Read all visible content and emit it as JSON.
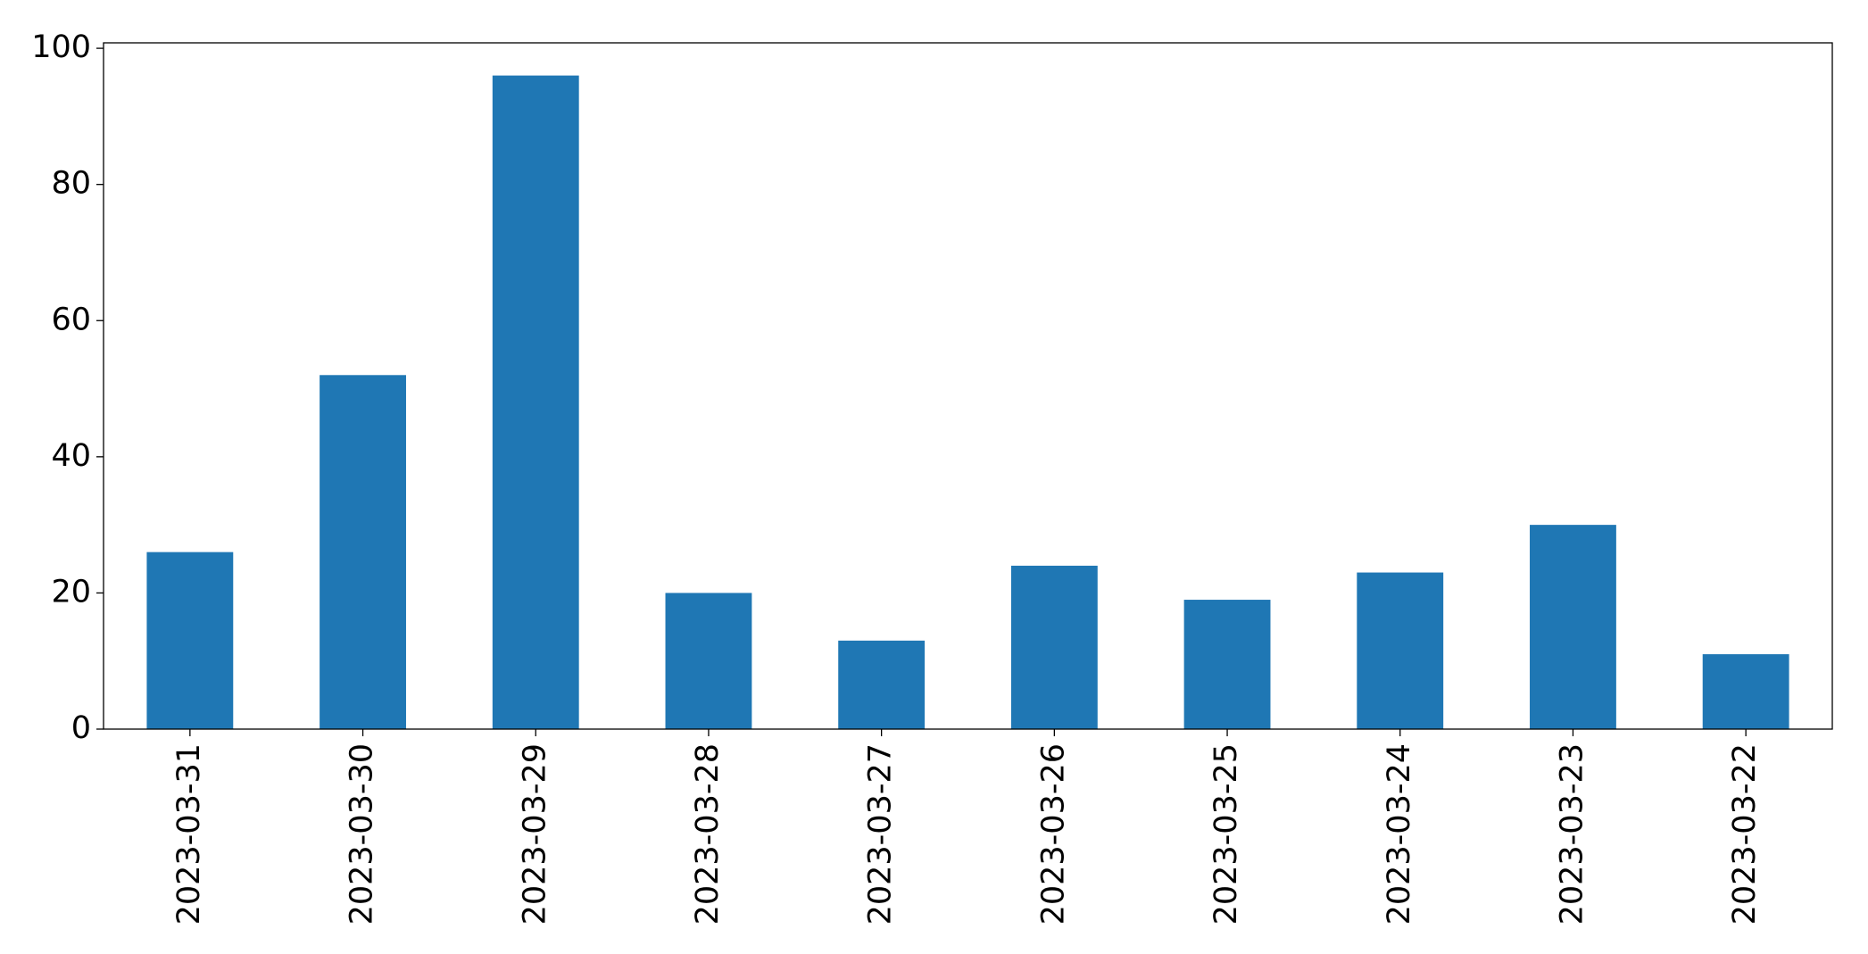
{
  "chart_data": {
    "type": "bar",
    "categories": [
      "2023-03-31",
      "2023-03-30",
      "2023-03-29",
      "2023-03-28",
      "2023-03-27",
      "2023-03-26",
      "2023-03-25",
      "2023-03-24",
      "2023-03-23",
      "2023-03-22"
    ],
    "values": [
      26,
      52,
      96,
      20,
      13,
      24,
      19,
      23,
      30,
      11
    ],
    "color": "#1f77b4",
    "ylim": [
      0,
      100.8
    ],
    "yticks": [
      0,
      20,
      40,
      60,
      80,
      100
    ],
    "grid": false
  }
}
